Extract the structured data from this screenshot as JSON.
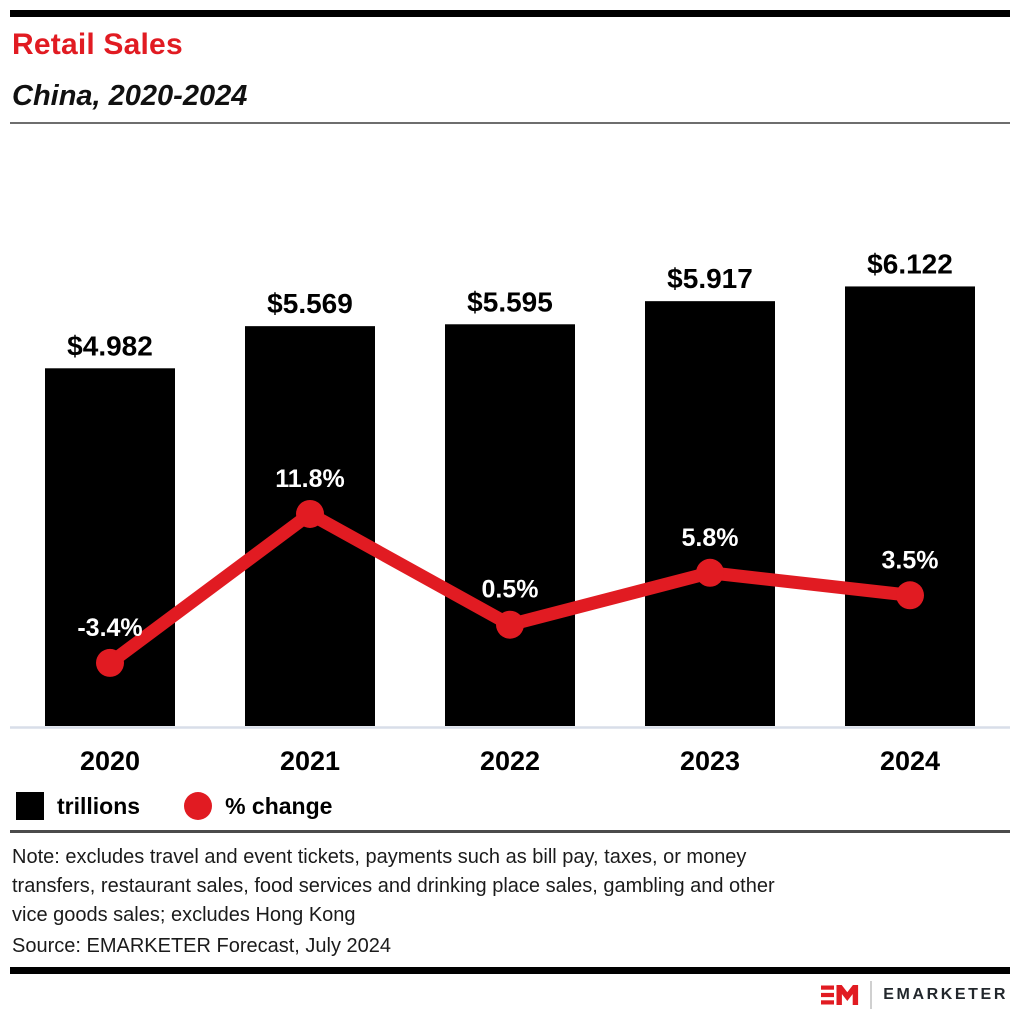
{
  "header": {
    "title": "Retail Sales",
    "subtitle": "China, 2020-2024"
  },
  "chart_data": {
    "type": "bar",
    "subtype": "bar-line-combo",
    "title": "Retail Sales",
    "subtitle": "China, 2020-2024",
    "categories": [
      "2020",
      "2021",
      "2022",
      "2023",
      "2024"
    ],
    "series": [
      {
        "name": "trillions",
        "type": "bar",
        "color": "#000000",
        "values": [
          4.982,
          5.569,
          5.595,
          5.917,
          6.122
        ],
        "labels": [
          "$4.982",
          "$5.569",
          "$5.595",
          "$5.917",
          "$6.122"
        ]
      },
      {
        "name": "% change",
        "type": "line",
        "color": "#e11b22",
        "values": [
          -3.4,
          11.8,
          0.5,
          5.8,
          3.5
        ],
        "labels": [
          "-3.4%",
          "11.8%",
          "0.5%",
          "5.8%",
          "3.5%"
        ]
      }
    ],
    "axes": {
      "x_labels_visible": true,
      "y_axis_visible": false,
      "grid": "off"
    },
    "bar_ylim": [
      0,
      8.3
    ],
    "line_ylim_pct": [
      -9.9,
      51
    ],
    "legend_position": "bottom-left"
  },
  "legend": {
    "items": [
      {
        "label": "trillions",
        "swatch": "square",
        "color": "#000000"
      },
      {
        "label": "% change",
        "swatch": "circle",
        "color": "#e11b22"
      }
    ]
  },
  "footer": {
    "note_lines": [
      "Note: excludes travel and event tickets, payments such as bill pay, taxes, or money",
      "transfers, restaurant sales, food services and drinking place sales, gambling and other",
      "vice goods sales; excludes Hong Kong"
    ],
    "source": "Source: EMARKETER Forecast, July 2024"
  },
  "branding": {
    "logo_mark": "EM",
    "logo_text": "EMARKETER"
  },
  "colors": {
    "accent_red": "#e11b22",
    "bar_black": "#000000",
    "axis_line": "#d8dee9",
    "header_rule": "#6e6e6e",
    "note_rule": "#4b4b4b"
  }
}
